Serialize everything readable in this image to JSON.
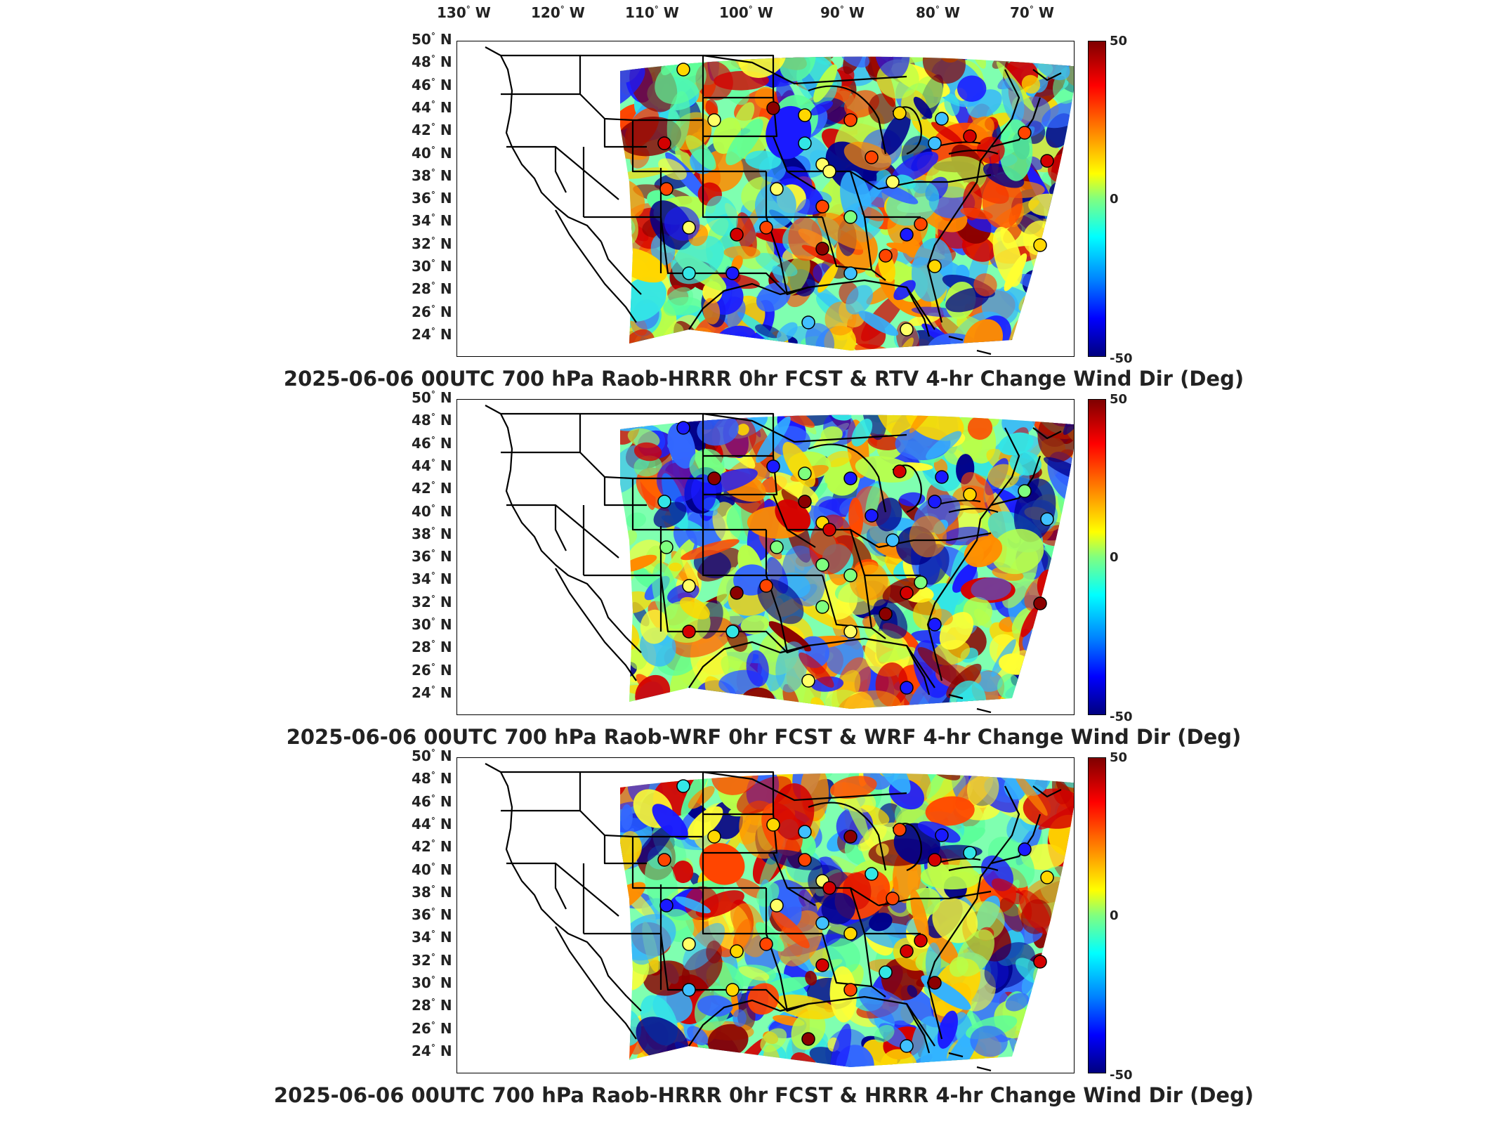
{
  "longitude_labels": [
    {
      "value": "130",
      "suffix": "W"
    },
    {
      "value": "120",
      "suffix": "W"
    },
    {
      "value": "110",
      "suffix": "W"
    },
    {
      "value": "100",
      "suffix": "W"
    },
    {
      "value": "90",
      "suffix": "W"
    },
    {
      "value": "80",
      "suffix": "W"
    },
    {
      "value": "70",
      "suffix": "W"
    }
  ],
  "latitude_labels": [
    {
      "value": "50",
      "suffix": "N"
    },
    {
      "value": "48",
      "suffix": "N"
    },
    {
      "value": "46",
      "suffix": "N"
    },
    {
      "value": "44",
      "suffix": "N"
    },
    {
      "value": "42",
      "suffix": "N"
    },
    {
      "value": "40",
      "suffix": "N"
    },
    {
      "value": "38",
      "suffix": "N"
    },
    {
      "value": "36",
      "suffix": "N"
    },
    {
      "value": "34",
      "suffix": "N"
    },
    {
      "value": "32",
      "suffix": "N"
    },
    {
      "value": "30",
      "suffix": "N"
    },
    {
      "value": "28",
      "suffix": "N"
    },
    {
      "value": "26",
      "suffix": "N"
    },
    {
      "value": "24",
      "suffix": "N"
    }
  ],
  "colorbar": {
    "max": "50",
    "mid": "0",
    "min": "-50",
    "colors": [
      "#7f0000",
      "#ff0000",
      "#ff8000",
      "#ffff00",
      "#80ff80",
      "#00ffff",
      "#0080ff",
      "#0000ff",
      "#00007f"
    ]
  },
  "panels": [
    {
      "title": "2025-06-06 00UTC 700 hPa Raob-HRRR 0hr FCST & RTV 4-hr Change Wind Dir (Deg)"
    },
    {
      "title": "2025-06-06 00UTC 700 hPa Raob-WRF 0hr FCST & WRF 4-hr Change Wind Dir (Deg)"
    },
    {
      "title": "2025-06-06 00UTC 700 hPa Raob-HRRR 0hr FCST & HRRR 4-hr Change Wind Dir (Deg)"
    }
  ]
}
